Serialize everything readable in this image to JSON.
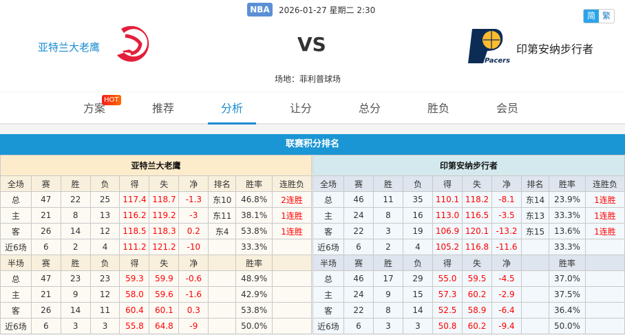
{
  "header": {
    "league": "NBA",
    "datetime": "2026-01-27 星期二 2:30",
    "lang_simplified": "简",
    "lang_traditional": "繁",
    "home_team": "亚特兰大老鹰",
    "away_team": "印第安纳步行者",
    "vs": "VS",
    "venue": "场地：菲利普球场",
    "away_logo_text": "Pacers"
  },
  "nav": {
    "hot_badge": "HOT",
    "items": [
      {
        "label": "方案"
      },
      {
        "label": "推荐"
      },
      {
        "label": "分析",
        "active": true
      },
      {
        "label": "让分"
      },
      {
        "label": "总分"
      },
      {
        "label": "胜负"
      },
      {
        "label": "会员"
      }
    ]
  },
  "section_title": "联赛积分排名",
  "colors": {
    "accent": "#1b96d4",
    "home": "#e41f3a",
    "red_value": "#ff0000"
  },
  "tables": [
    {
      "team": "亚特兰大老鹰",
      "full_header": [
        "全场",
        "赛",
        "胜",
        "负",
        "得",
        "失",
        "净",
        "排名",
        "胜率",
        "连胜负"
      ],
      "full_rows": [
        [
          "总",
          "47",
          "22",
          "25",
          "117.4",
          "118.7",
          "-1.3",
          "东10",
          "46.8%",
          "2连胜"
        ],
        [
          "主",
          "21",
          "8",
          "13",
          "116.2",
          "119.2",
          "-3",
          "东11",
          "38.1%",
          "1连胜"
        ],
        [
          "客",
          "26",
          "14",
          "12",
          "118.5",
          "118.3",
          "0.2",
          "东4",
          "53.8%",
          "1连胜"
        ],
        [
          "近6场",
          "6",
          "2",
          "4",
          "111.2",
          "121.2",
          "-10",
          "",
          "33.3%",
          ""
        ]
      ],
      "half_header": [
        "半场",
        "赛",
        "胜",
        "负",
        "得",
        "失",
        "净",
        "",
        "胜率",
        ""
      ],
      "half_rows": [
        [
          "总",
          "47",
          "23",
          "23",
          "59.3",
          "59.9",
          "-0.6",
          "",
          "48.9%",
          ""
        ],
        [
          "主",
          "21",
          "9",
          "12",
          "58.0",
          "59.6",
          "-1.6",
          "",
          "42.9%",
          ""
        ],
        [
          "客",
          "26",
          "14",
          "11",
          "60.4",
          "60.1",
          "0.3",
          "",
          "53.8%",
          ""
        ],
        [
          "近6场",
          "6",
          "3",
          "3",
          "55.8",
          "64.8",
          "-9",
          "",
          "50.0%",
          ""
        ]
      ]
    },
    {
      "team": "印第安纳步行者",
      "full_header": [
        "全场",
        "赛",
        "胜",
        "负",
        "得",
        "失",
        "净",
        "排名",
        "胜率",
        "连胜负"
      ],
      "full_rows": [
        [
          "总",
          "46",
          "11",
          "35",
          "110.1",
          "118.2",
          "-8.1",
          "东14",
          "23.9%",
          "1连胜"
        ],
        [
          "主",
          "24",
          "8",
          "16",
          "113.0",
          "116.5",
          "-3.5",
          "东13",
          "33.3%",
          "1连胜"
        ],
        [
          "客",
          "22",
          "3",
          "19",
          "106.9",
          "120.1",
          "-13.2",
          "东15",
          "13.6%",
          "1连胜"
        ],
        [
          "近6场",
          "6",
          "2",
          "4",
          "105.2",
          "116.8",
          "-11.6",
          "",
          "33.3%",
          ""
        ]
      ],
      "half_header": [
        "半场",
        "赛",
        "胜",
        "负",
        "得",
        "失",
        "净",
        "",
        "胜率",
        ""
      ],
      "half_rows": [
        [
          "总",
          "46",
          "17",
          "29",
          "55.0",
          "59.5",
          "-4.5",
          "",
          "37.0%",
          ""
        ],
        [
          "主",
          "24",
          "9",
          "15",
          "57.3",
          "60.2",
          "-2.9",
          "",
          "37.5%",
          ""
        ],
        [
          "客",
          "22",
          "8",
          "14",
          "52.5",
          "58.9",
          "-6.4",
          "",
          "36.4%",
          ""
        ],
        [
          "近6场",
          "6",
          "3",
          "3",
          "50.8",
          "60.2",
          "-9.4",
          "",
          "50.0%",
          ""
        ]
      ]
    }
  ]
}
